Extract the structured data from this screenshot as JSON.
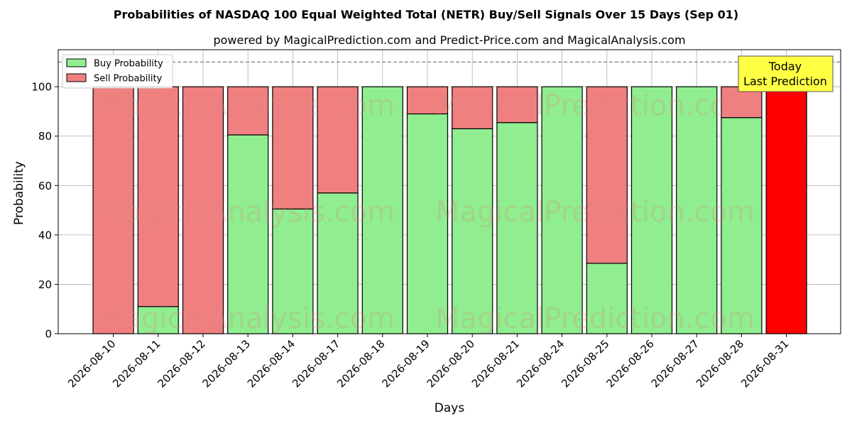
{
  "chart_data": {
    "type": "bar",
    "stacked": true,
    "title": "Probabilities of NASDAQ 100 Equal Weighted Total (NETR) Buy/Sell Signals Over 15 Days (Sep 01)",
    "subtitle": "powered by MagicalPrediction.com and Predict-Price.com and MagicalAnalysis.com",
    "xlabel": "Days",
    "ylabel": "Probability",
    "ylim": [
      0,
      115
    ],
    "yticks": [
      0,
      20,
      40,
      60,
      80,
      100
    ],
    "reference_line": 110,
    "grid": true,
    "legend_position": "top-left",
    "categories": [
      "2026-08-10",
      "2026-08-11",
      "2026-08-12",
      "2026-08-13",
      "2026-08-14",
      "2026-08-17",
      "2026-08-18",
      "2026-08-19",
      "2026-08-20",
      "2026-08-21",
      "2026-08-24",
      "2026-08-25",
      "2026-08-26",
      "2026-08-27",
      "2026-08-28",
      "2026-08-31"
    ],
    "series": [
      {
        "name": "Buy Probability",
        "color": "#90ee90",
        "values": [
          0,
          11,
          0,
          80.5,
          50.5,
          57,
          100,
          89,
          83,
          85.5,
          100,
          28.5,
          100,
          100,
          87.5,
          0
        ]
      },
      {
        "name": "Sell Probability",
        "color": "#f08080",
        "values": [
          100,
          89,
          100,
          19.5,
          49.5,
          43,
          0,
          11,
          17,
          14.5,
          0,
          71.5,
          0,
          0,
          12.5,
          100
        ]
      }
    ],
    "highlight": {
      "category": "2026-08-31",
      "color": "#ff0000",
      "label_lines": [
        "Today",
        "Last Prediction"
      ]
    },
    "watermarks": [
      "MagicalAnalysis.com",
      "MagicalPrediction.com"
    ]
  }
}
